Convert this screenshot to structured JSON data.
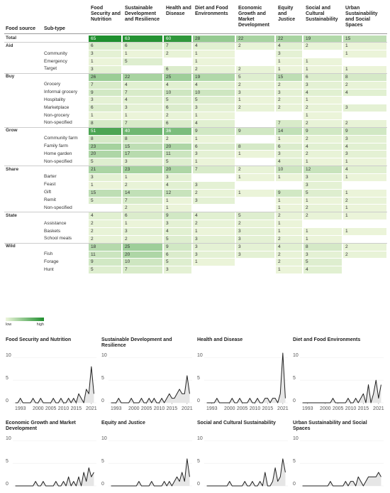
{
  "table": {
    "headers": [
      "Food source",
      "Sub-type",
      "Food Security and Nutrition",
      "Sustainable Development and Resilience",
      "Health and Disease",
      "Diet and Food Environments",
      "Economic Growth and Market Development",
      "Equity and Justice",
      "Social and Cultural Sustainability",
      "Urban Sustainability and Social Spaces"
    ],
    "rows": [
      {
        "source": "Total",
        "values": [
          65,
          63,
          60,
          28,
          22,
          22,
          19,
          15
        ]
      },
      {
        "source": "Aid",
        "values": [
          6,
          6,
          7,
          4,
          2,
          4,
          2,
          1
        ]
      },
      {
        "subtype": "Community",
        "values": [
          3,
          1,
          2,
          1,
          null,
          3,
          null,
          1
        ]
      },
      {
        "subtype": "Emergency",
        "values": [
          1,
          5,
          null,
          1,
          null,
          1,
          1,
          null
        ]
      },
      {
        "subtype": "Target",
        "values": [
          3,
          null,
          6,
          2,
          2,
          1,
          1,
          1
        ]
      },
      {
        "source": "Buy",
        "values": [
          26,
          22,
          25,
          19,
          5,
          15,
          6,
          8
        ]
      },
      {
        "subtype": "Grocery",
        "values": [
          7,
          4,
          4,
          4,
          2,
          2,
          3,
          2
        ]
      },
      {
        "subtype": "Informal grocery",
        "values": [
          9,
          7,
          10,
          10,
          3,
          3,
          4,
          4
        ]
      },
      {
        "subtype": "Hospitality",
        "values": [
          3,
          4,
          5,
          5,
          1,
          2,
          1,
          null
        ]
      },
      {
        "subtype": "Marketplace",
        "values": [
          6,
          3,
          6,
          3,
          2,
          2,
          2,
          3
        ]
      },
      {
        "subtype": "Non-grocery",
        "values": [
          1,
          1,
          2,
          1,
          null,
          null,
          1,
          null
        ]
      },
      {
        "subtype": "Non-specified",
        "values": [
          8,
          7,
          6,
          4,
          null,
          7,
          2,
          2
        ]
      },
      {
        "source": "Grow",
        "values": [
          51,
          40,
          36,
          9,
          9,
          14,
          9,
          9
        ]
      },
      {
        "subtype": "Community farm",
        "values": [
          8,
          8,
          2,
          1,
          null,
          1,
          2,
          3
        ]
      },
      {
        "subtype": "Family farm",
        "values": [
          23,
          15,
          20,
          6,
          8,
          6,
          4,
          4
        ]
      },
      {
        "subtype": "Home garden",
        "values": [
          20,
          17,
          11,
          3,
          1,
          3,
          2,
          3
        ]
      },
      {
        "subtype": "Non-specified",
        "values": [
          5,
          3,
          5,
          1,
          null,
          4,
          1,
          1
        ]
      },
      {
        "source": "Share",
        "values": [
          21,
          23,
          20,
          7,
          2,
          10,
          12,
          4
        ]
      },
      {
        "subtype": "Barter",
        "values": [
          3,
          1,
          3,
          null,
          1,
          1,
          3,
          1
        ]
      },
      {
        "subtype": "Feast",
        "values": [
          1,
          2,
          4,
          3,
          null,
          null,
          3,
          null
        ]
      },
      {
        "subtype": "Gift",
        "values": [
          15,
          14,
          12,
          2,
          1,
          9,
          5,
          1
        ]
      },
      {
        "subtype": "Remit",
        "values": [
          5,
          7,
          1,
          3,
          null,
          1,
          1,
          2
        ]
      },
      {
        "subtype": "Non-specified",
        "values": [
          null,
          2,
          1,
          null,
          null,
          1,
          2,
          1
        ]
      },
      {
        "source": "State",
        "values": [
          4,
          6,
          9,
          4,
          5,
          2,
          2,
          1
        ]
      },
      {
        "subtype": "Assistance",
        "values": [
          2,
          1,
          3,
          2,
          2,
          1,
          null,
          null
        ]
      },
      {
        "subtype": "Baskets",
        "values": [
          2,
          3,
          4,
          1,
          3,
          1,
          1,
          1
        ]
      },
      {
        "subtype": "School meals",
        "values": [
          2,
          2,
          5,
          3,
          3,
          2,
          1,
          null
        ]
      },
      {
        "source": "Wild",
        "values": [
          18,
          25,
          9,
          3,
          3,
          4,
          8,
          2
        ]
      },
      {
        "subtype": "Fish",
        "values": [
          11,
          20,
          6,
          3,
          3,
          2,
          3,
          2
        ]
      },
      {
        "subtype": "Forage",
        "values": [
          9,
          10,
          5,
          1,
          null,
          2,
          5,
          null
        ]
      },
      {
        "subtype": "Hunt",
        "values": [
          5,
          7,
          3,
          null,
          null,
          1,
          4,
          null
        ]
      }
    ],
    "scale": {
      "low": "low",
      "high": "high",
      "low_color": "#eef6dc",
      "high_color": "#1f8f2e"
    }
  },
  "chart_data": [
    {
      "type": "area",
      "title": "Food Security and Nutrition",
      "x": [
        1991,
        1992,
        1993,
        1994,
        1995,
        1996,
        1997,
        1998,
        1999,
        2000,
        2001,
        2002,
        2003,
        2004,
        2005,
        2006,
        2007,
        2008,
        2009,
        2010,
        2011,
        2012,
        2013,
        2014,
        2015,
        2016,
        2017,
        2018,
        2019,
        2020,
        2021,
        2022
      ],
      "values": [
        0,
        0,
        1,
        0,
        0,
        0,
        0,
        1,
        0,
        0,
        1,
        0,
        0,
        0,
        0,
        1,
        0,
        0,
        1,
        0,
        0,
        1,
        0,
        1,
        0,
        2,
        1,
        0,
        3,
        2,
        8,
        2
      ],
      "xlim": [
        1990,
        2023
      ],
      "ylim": [
        0,
        11
      ],
      "yticks": [
        0,
        5,
        10
      ],
      "xticks": [
        1993,
        2000,
        2005,
        2010,
        2015,
        2021
      ],
      "color": "#e6e6e6"
    },
    {
      "type": "area",
      "title": "Sustainable Development and Resilience",
      "x": [
        1991,
        1992,
        1993,
        1994,
        1995,
        1996,
        1997,
        1998,
        1999,
        2000,
        2001,
        2002,
        2003,
        2004,
        2005,
        2006,
        2007,
        2008,
        2009,
        2010,
        2011,
        2012,
        2013,
        2014,
        2015,
        2016,
        2017,
        2018,
        2019,
        2020,
        2021,
        2022
      ],
      "values": [
        0,
        0,
        0,
        1,
        0,
        0,
        0,
        0,
        1,
        0,
        0,
        0,
        1,
        0,
        0,
        1,
        0,
        1,
        0,
        0,
        1,
        0,
        1,
        2,
        1,
        1,
        2,
        3,
        2,
        2,
        6,
        2
      ],
      "xlim": [
        1990,
        2023
      ],
      "ylim": [
        0,
        11
      ],
      "yticks": [
        0,
        5,
        10
      ],
      "xticks": [
        1993,
        2000,
        2005,
        2010,
        2015,
        2021
      ],
      "color": "#e6e6e6"
    },
    {
      "type": "area",
      "title": "Health and Disease",
      "x": [
        1991,
        1992,
        1993,
        1994,
        1995,
        1996,
        1997,
        1998,
        1999,
        2000,
        2001,
        2002,
        2003,
        2004,
        2005,
        2006,
        2007,
        2008,
        2009,
        2010,
        2011,
        2012,
        2013,
        2014,
        2015,
        2016,
        2017,
        2018,
        2019,
        2020,
        2021,
        2022
      ],
      "values": [
        0,
        0,
        0,
        0,
        1,
        0,
        0,
        0,
        0,
        0,
        1,
        0,
        0,
        1,
        0,
        0,
        0,
        1,
        0,
        0,
        1,
        0,
        0,
        1,
        1,
        0,
        1,
        1,
        0,
        2,
        11,
        1
      ],
      "xlim": [
        1990,
        2023
      ],
      "ylim": [
        0,
        11
      ],
      "yticks": [
        0,
        5,
        10
      ],
      "xticks": [
        1993,
        2000,
        2005,
        2010,
        2015,
        2021
      ],
      "color": "#e6e6e6"
    },
    {
      "type": "area",
      "title": "Diet and Food Environments",
      "x": [
        1991,
        1992,
        1993,
        1994,
        1995,
        1996,
        1997,
        1998,
        1999,
        2000,
        2001,
        2002,
        2003,
        2004,
        2005,
        2006,
        2007,
        2008,
        2009,
        2010,
        2011,
        2012,
        2013,
        2014,
        2015,
        2016,
        2017,
        2018,
        2019,
        2020,
        2021,
        2022
      ],
      "values": [
        0,
        0,
        0,
        0,
        0,
        0,
        0,
        0,
        0,
        0,
        0,
        0,
        1,
        0,
        0,
        0,
        0,
        0,
        1,
        0,
        0,
        1,
        0,
        1,
        2,
        0,
        4,
        0,
        2,
        5,
        1,
        4
      ],
      "xlim": [
        1990,
        2023
      ],
      "ylim": [
        0,
        11
      ],
      "yticks": [
        0,
        5,
        10
      ],
      "xticks": [
        1993,
        2000,
        2005,
        2010,
        2015,
        2021
      ],
      "color": "#e6e6e6"
    },
    {
      "type": "area",
      "title": "Economic Growth and Market Development",
      "x": [
        1991,
        1992,
        1993,
        1994,
        1995,
        1996,
        1997,
        1998,
        1999,
        2000,
        2001,
        2002,
        2003,
        2004,
        2005,
        2006,
        2007,
        2008,
        2009,
        2010,
        2011,
        2012,
        2013,
        2014,
        2015,
        2016,
        2017,
        2018,
        2019,
        2020,
        2021,
        2022
      ],
      "values": [
        0,
        0,
        0,
        0,
        0,
        0,
        0,
        0,
        1,
        0,
        0,
        1,
        0,
        0,
        0,
        0,
        1,
        0,
        0,
        1,
        0,
        2,
        0,
        1,
        0,
        2,
        0,
        3,
        1,
        4,
        2,
        3
      ],
      "xlim": [
        1990,
        2023
      ],
      "ylim": [
        0,
        11
      ],
      "yticks": [
        0,
        5,
        10
      ],
      "color": "#e6e6e6"
    },
    {
      "type": "area",
      "title": "Equity and Justice",
      "x": [
        1991,
        1992,
        1993,
        1994,
        1995,
        1996,
        1997,
        1998,
        1999,
        2000,
        2001,
        2002,
        2003,
        2004,
        2005,
        2006,
        2007,
        2008,
        2009,
        2010,
        2011,
        2012,
        2013,
        2014,
        2015,
        2016,
        2017,
        2018,
        2019,
        2020,
        2021,
        2022
      ],
      "values": [
        0,
        0,
        0,
        0,
        0,
        0,
        0,
        0,
        0,
        0,
        0,
        1,
        0,
        0,
        0,
        0,
        1,
        0,
        0,
        0,
        0,
        1,
        0,
        1,
        0,
        1,
        2,
        1,
        3,
        1,
        6,
        2
      ],
      "xlim": [
        1990,
        2023
      ],
      "ylim": [
        0,
        11
      ],
      "yticks": [
        0,
        5,
        10
      ],
      "color": "#e6e6e6"
    },
    {
      "type": "area",
      "title": "Social and Cultural Sustainability",
      "x": [
        1991,
        1992,
        1993,
        1994,
        1995,
        1996,
        1997,
        1998,
        1999,
        2000,
        2001,
        2002,
        2003,
        2004,
        2005,
        2006,
        2007,
        2008,
        2009,
        2010,
        2011,
        2012,
        2013,
        2014,
        2015,
        2016,
        2017,
        2018,
        2019,
        2020,
        2021,
        2022
      ],
      "values": [
        0,
        0,
        0,
        0,
        0,
        0,
        0,
        0,
        0,
        1,
        0,
        0,
        0,
        0,
        0,
        1,
        0,
        0,
        1,
        0,
        0,
        1,
        0,
        3,
        0,
        0,
        1,
        4,
        1,
        2,
        6,
        3
      ],
      "xlim": [
        1990,
        2023
      ],
      "ylim": [
        0,
        11
      ],
      "yticks": [
        0,
        5,
        10
      ],
      "color": "#e6e6e6"
    },
    {
      "type": "area",
      "title": "Urban Sustainability and Social Spaces",
      "x": [
        1991,
        1992,
        1993,
        1994,
        1995,
        1996,
        1997,
        1998,
        1999,
        2000,
        2001,
        2002,
        2003,
        2004,
        2005,
        2006,
        2007,
        2008,
        2009,
        2010,
        2011,
        2012,
        2013,
        2014,
        2015,
        2016,
        2017,
        2018,
        2019,
        2020,
        2021,
        2022
      ],
      "values": [
        0,
        0,
        0,
        0,
        0,
        0,
        0,
        0,
        0,
        0,
        0,
        1,
        0,
        0,
        0,
        0,
        0,
        1,
        0,
        1,
        1,
        0,
        2,
        1,
        0,
        1,
        2,
        2,
        2,
        2,
        3,
        2
      ],
      "xlim": [
        1990,
        2023
      ],
      "ylim": [
        0,
        11
      ],
      "yticks": [
        0,
        5,
        10
      ],
      "color": "#e6e6e6"
    }
  ]
}
